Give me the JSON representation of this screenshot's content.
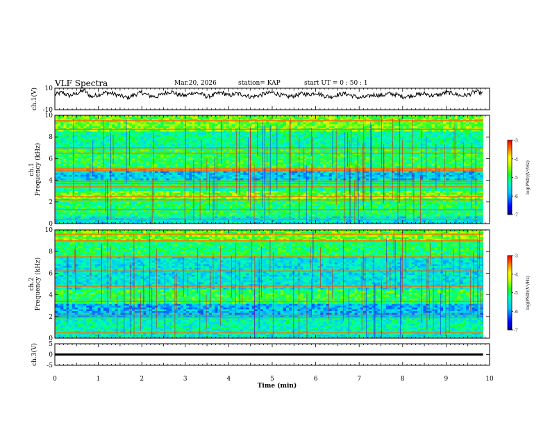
{
  "header": {
    "title": "VLF Spectra",
    "date": "Mar.20, 2026",
    "station": "station= KAP",
    "start": "start  UT =   0 : 50 : 1"
  },
  "chart_data": [
    {
      "type": "line",
      "name": "ch1-waveform",
      "ylabel": "ch.1(V)",
      "ylim": [
        -10,
        10
      ],
      "yticks": [
        "10",
        "-10"
      ],
      "xlim": [
        0,
        10
      ],
      "x_end": 9.85,
      "description_values": "noisy waveform oscillating roughly between -3 and 9 V",
      "approx_samples": [
        4,
        6,
        3,
        5,
        8,
        2,
        4,
        6,
        5,
        3,
        1,
        4,
        6,
        3,
        2,
        5,
        7,
        4,
        3,
        6,
        5,
        2,
        4,
        6,
        3,
        5,
        4,
        2,
        3,
        5,
        6,
        4,
        2,
        3,
        5,
        4,
        6,
        3,
        2,
        4,
        5,
        3,
        1,
        2,
        4,
        3,
        5,
        4,
        2,
        3,
        4,
        5,
        3,
        4,
        6,
        5,
        3,
        4,
        7,
        5
      ]
    },
    {
      "type": "heatmap",
      "name": "ch1-spectrogram",
      "ylabel": "ch.1\nFrequency (kHz)",
      "ylim": [
        0,
        10
      ],
      "yticks": [
        "0",
        "2",
        "4",
        "6",
        "8",
        "10"
      ],
      "xlim": [
        0,
        10
      ],
      "x_end": 9.85,
      "colorbar": {
        "label": "log(PSD)(V²/Hz)",
        "range": [
          -7,
          -3
        ],
        "ticks": [
          "-3",
          "-4",
          "-5",
          "-6",
          "-7"
        ]
      },
      "bands_khz": [
        {
          "f0": 0,
          "f1": 0.6,
          "level": -5.5
        },
        {
          "f0": 0.6,
          "f1": 2.2,
          "level": -5.0
        },
        {
          "f0": 2.2,
          "f1": 3.0,
          "level": -4.6
        },
        {
          "f0": 3.0,
          "f1": 4.0,
          "level": -5.1
        },
        {
          "f0": 4.0,
          "f1": 5.0,
          "level": -5.7
        },
        {
          "f0": 5.0,
          "f1": 6.8,
          "level": -4.9
        },
        {
          "f0": 6.8,
          "f1": 8.5,
          "level": -5.2
        },
        {
          "f0": 8.5,
          "f1": 10,
          "level": -4.6
        }
      ],
      "strong_lines_khz": [
        0.4,
        1.3,
        2.2,
        2.5,
        3.4,
        3.7,
        3.9,
        4.9,
        5.1,
        6.5,
        7.0,
        8.7,
        9.5
      ]
    },
    {
      "type": "heatmap",
      "name": "ch2-spectrogram",
      "ylabel": "ch.2\nFrequency (kHz)",
      "ylim": [
        0,
        10
      ],
      "yticks": [
        "0",
        "2",
        "4",
        "6",
        "8",
        "10"
      ],
      "xlim": [
        0,
        10
      ],
      "x_end": 9.85,
      "colorbar": {
        "label": "log(PSD)(V²/Hz)",
        "range": [
          -7,
          -3
        ],
        "ticks": [
          "-3",
          "-4",
          "-5",
          "-6",
          "-7"
        ]
      },
      "bands_khz": [
        {
          "f0": 0,
          "f1": 0.6,
          "level": -5.4
        },
        {
          "f0": 0.6,
          "f1": 2.0,
          "level": -5.3
        },
        {
          "f0": 2.0,
          "f1": 3.2,
          "level": -5.8
        },
        {
          "f0": 3.2,
          "f1": 4.5,
          "level": -4.9
        },
        {
          "f0": 4.5,
          "f1": 7.5,
          "level": -5.5
        },
        {
          "f0": 7.5,
          "f1": 9.0,
          "level": -5.0
        },
        {
          "f0": 9.0,
          "f1": 10,
          "level": -4.6
        }
      ],
      "strong_lines_khz": [
        0.5,
        1.9,
        2.1,
        3.4,
        4.8,
        6.2,
        7.5,
        9.0,
        9.6
      ]
    },
    {
      "type": "line",
      "name": "ch3-waveform",
      "ylabel": "ch.3(V)",
      "ylim": [
        -5,
        5
      ],
      "yticks": [
        "5",
        "0",
        "-5"
      ],
      "xlim": [
        0,
        10
      ],
      "x_end": 9.85,
      "band_range_v": [
        -0.5,
        0.5
      ],
      "xlabel": "Time  (min)",
      "xticks": [
        "0",
        "1",
        "2",
        "3",
        "4",
        "5",
        "6",
        "7",
        "8",
        "9",
        "10"
      ]
    }
  ]
}
